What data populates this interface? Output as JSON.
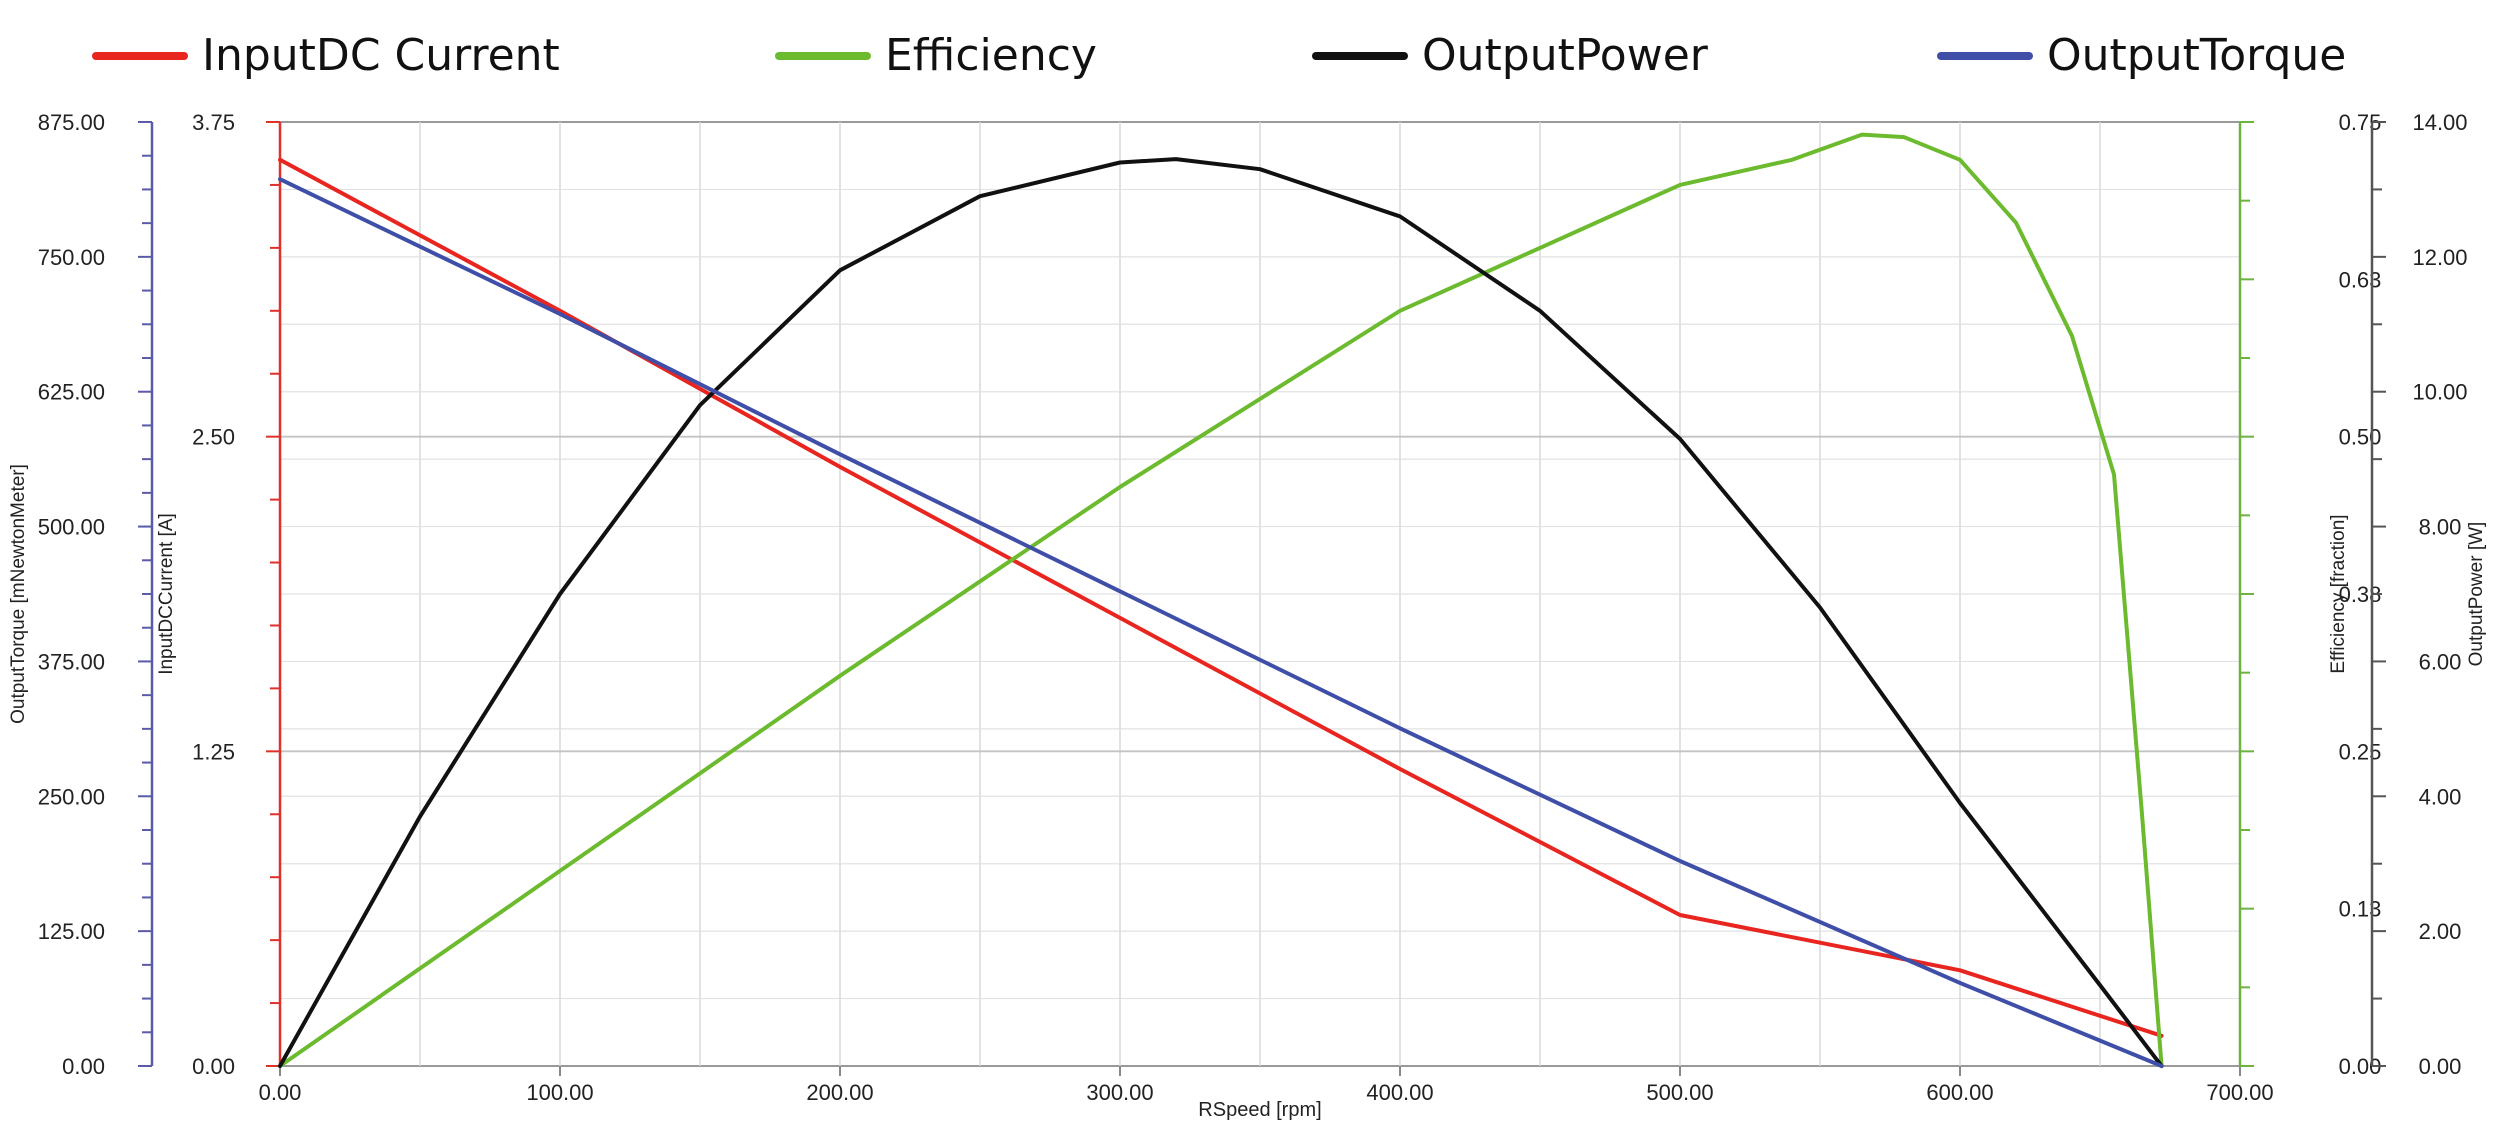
{
  "chart_data": {
    "type": "line",
    "legend_position": "top",
    "grid": true,
    "x_axis": {
      "label": "RSpeed [rpm]",
      "range": [
        0,
        700
      ],
      "ticks": [
        "0.00",
        "100.00",
        "200.00",
        "300.00",
        "400.00",
        "500.00",
        "600.00",
        "700.00"
      ]
    },
    "axes": [
      {
        "id": "torque",
        "label": "OutputTorque [mNewtonMeter]",
        "range": [
          0,
          875
        ],
        "ticks": [
          "0.00",
          "125.00",
          "250.00",
          "375.00",
          "500.00",
          "625.00",
          "750.00",
          "875.00"
        ],
        "color": "#5a5aa8"
      },
      {
        "id": "current",
        "label": "InputDCCurrent [A]",
        "range": [
          0,
          3.75
        ],
        "ticks": [
          "0.00",
          "1.25",
          "2.50",
          "3.75"
        ],
        "color": "#e0302a"
      },
      {
        "id": "efficiency",
        "label": "Efficiency [fraction]",
        "range": [
          0,
          0.75
        ],
        "ticks": [
          "0.00",
          "0.13",
          "0.25",
          "0.38",
          "0.50",
          "0.63",
          "0.75"
        ],
        "color": "#6db33f"
      },
      {
        "id": "power",
        "label": "OutputPower [W]",
        "range": [
          0,
          14
        ],
        "ticks": [
          "0.00",
          "2.00",
          "4.00",
          "6.00",
          "8.00",
          "10.00",
          "12.00",
          "14.00"
        ],
        "color": "#555555"
      }
    ],
    "series": [
      {
        "name": "InputDC Current",
        "axis": "current",
        "color": "#e8251f",
        "x": [
          0,
          100,
          200,
          300,
          400,
          500,
          600,
          672
        ],
        "y": [
          3.6,
          3.0,
          2.38,
          1.78,
          1.18,
          0.6,
          0.38,
          0.12
        ]
      },
      {
        "name": "Efficiency",
        "axis": "efficiency",
        "color": "#6cbb2e",
        "x": [
          0,
          100,
          200,
          300,
          400,
          450,
          500,
          540,
          565,
          580,
          600,
          620,
          640,
          655,
          665,
          672
        ],
        "y": [
          0,
          0.155,
          0.31,
          0.46,
          0.6,
          0.65,
          0.7,
          0.72,
          0.74,
          0.738,
          0.72,
          0.67,
          0.58,
          0.47,
          0.2,
          0
        ]
      },
      {
        "name": "OutputPower",
        "axis": "power",
        "color": "#111111",
        "x": [
          0,
          50,
          100,
          150,
          200,
          250,
          300,
          320,
          350,
          400,
          450,
          500,
          550,
          600,
          650,
          672
        ],
        "y": [
          0,
          3.7,
          7.0,
          9.8,
          11.8,
          12.9,
          13.4,
          13.45,
          13.3,
          12.6,
          11.2,
          9.3,
          6.8,
          3.9,
          1.2,
          0
        ]
      },
      {
        "name": "OutputTorque",
        "axis": "torque",
        "color": "#3f4fa8",
        "x": [
          0,
          100,
          200,
          300,
          400,
          500,
          600,
          672
        ],
        "y": [
          822,
          697,
          567,
          440,
          313,
          190,
          77,
          0
        ]
      }
    ]
  }
}
